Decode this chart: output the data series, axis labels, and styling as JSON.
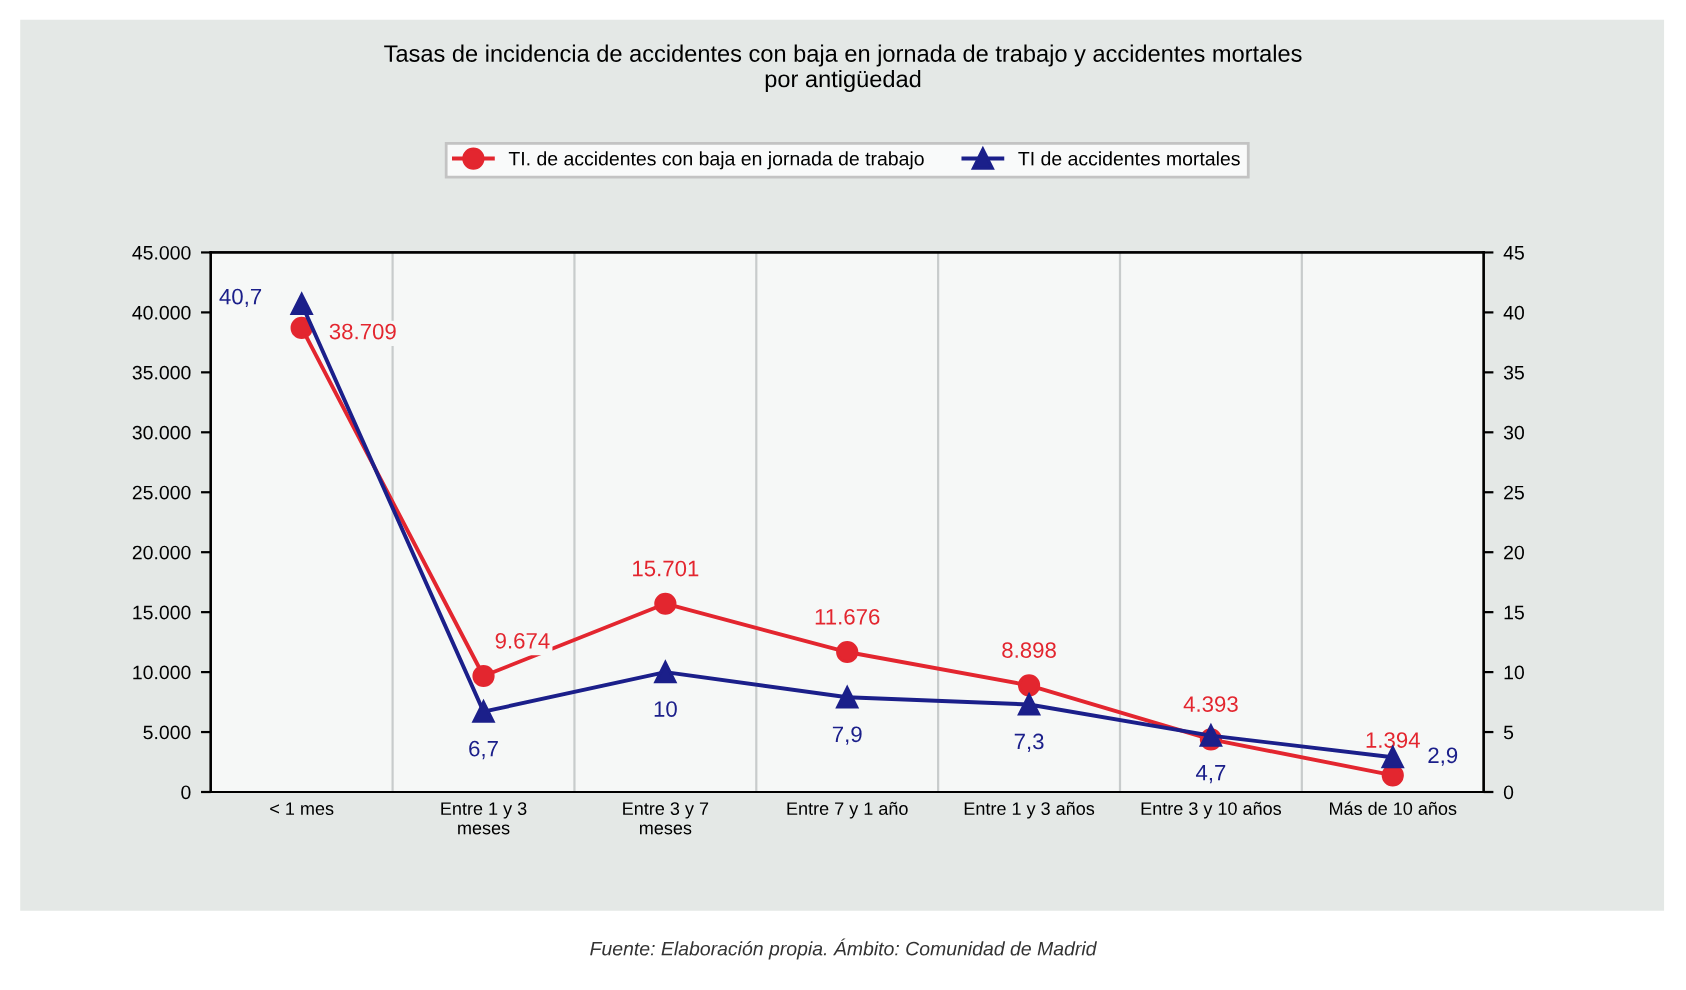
{
  "chart_data": {
    "type": "line",
    "title": "Tasas de incidencia de accidentes con baja en jornada de trabajo y accidentes mortales\npor antigüedad",
    "categories": [
      "< 1 mes",
      "Entre 1 y 3\nmeses",
      "Entre 3 y 7\nmeses",
      "Entre 7 y 1 año",
      "Entre 1 y 3 años",
      "Entre 3 y 10 años",
      "Más de 10 años"
    ],
    "series": [
      {
        "name": "TI. de accidentes con baja en jornada de trabajo",
        "color": "#e3262f",
        "marker": "circle",
        "values": [
          38709,
          9674,
          15701,
          11676,
          8898,
          4393,
          1394
        ],
        "value_labels": [
          "38.709",
          "9.674",
          "15.701",
          "11.676",
          "8.898",
          "4.393",
          "1.394"
        ]
      },
      {
        "name": "TI de accidentes mortales",
        "color": "#1b1f8a",
        "marker": "triangle",
        "axis": "y2",
        "values": [
          40.7,
          6.7,
          10,
          7.9,
          7.3,
          4.7,
          2.9
        ],
        "value_labels": [
          "40,7",
          "6,7",
          "10",
          "7,9",
          "7,3",
          "4,7",
          "2,9"
        ]
      }
    ],
    "ylim": [
      0,
      45000
    ],
    "yticks": [
      {
        "value": 0,
        "label": "0"
      },
      {
        "value": 5000,
        "label": "5.000"
      },
      {
        "value": 10000,
        "label": "10.000"
      },
      {
        "value": 15000,
        "label": "15.000"
      },
      {
        "value": 20000,
        "label": "20.000"
      },
      {
        "value": 25000,
        "label": "25.000"
      },
      {
        "value": 30000,
        "label": "30.000"
      },
      {
        "value": 35000,
        "label": "35.000"
      },
      {
        "value": 40000,
        "label": "40.000"
      },
      {
        "value": 45000,
        "label": "45.000"
      }
    ],
    "y2lim": [
      0,
      45
    ],
    "y2ticks": [
      0,
      5,
      10,
      15,
      20,
      25,
      30,
      35,
      40,
      45
    ],
    "grid": "x",
    "legend": "top",
    "annotations": [
      "Fuente: Elaboración propia. Ámbito: Comunidad de Madrid"
    ]
  }
}
